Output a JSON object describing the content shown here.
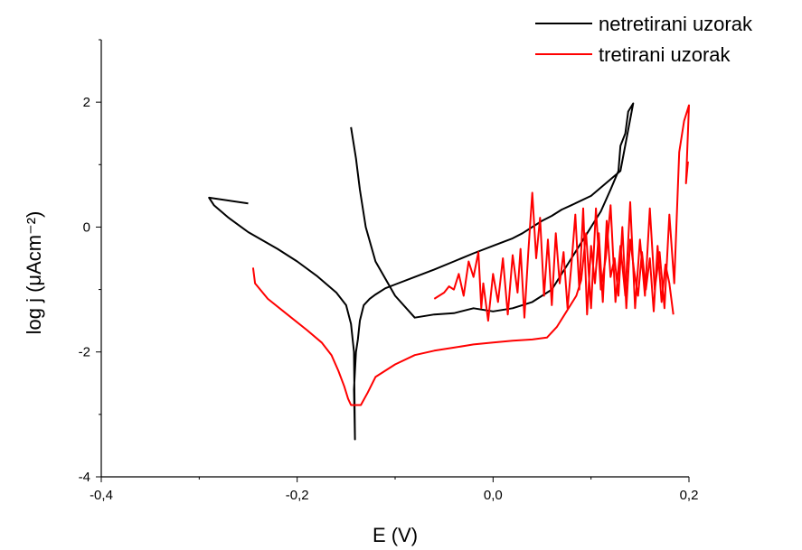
{
  "chart_data": {
    "type": "line",
    "xlabel": "E (V)",
    "ylabel": "log j (μAcm⁻²)",
    "xlim": [
      -0.4,
      0.2
    ],
    "ylim": [
      -4,
      3
    ],
    "x_ticks": [
      -0.4,
      -0.2,
      0.0,
      0.2
    ],
    "x_tick_labels": [
      "-0,4",
      "-0,2",
      "0,0",
      "0,2"
    ],
    "y_ticks": [
      -4,
      -2,
      0,
      2
    ],
    "y_tick_labels": [
      "-4",
      "-2",
      "0",
      "2"
    ],
    "grid": false,
    "legend_position": "top-right",
    "series": [
      {
        "name": "netretirani uzorak",
        "color": "#000000",
        "x": [
          -0.25,
          -0.29,
          -0.285,
          -0.27,
          -0.25,
          -0.22,
          -0.2,
          -0.18,
          -0.16,
          -0.15,
          -0.145,
          -0.142,
          -0.141,
          -0.142,
          -0.14,
          -0.138,
          -0.136,
          -0.132,
          -0.126,
          -0.12,
          -0.11,
          -0.1,
          -0.08,
          -0.06,
          -0.04,
          -0.02,
          0.0,
          0.02,
          0.03,
          0.04,
          0.05,
          0.06,
          0.07,
          0.08,
          0.1,
          0.13,
          0.143,
          0.138,
          0.135,
          0.13,
          0.128,
          0.12,
          0.11,
          0.1,
          0.08,
          0.06,
          0.04,
          0.02,
          0.0,
          -0.02,
          -0.04,
          -0.06,
          -0.08,
          -0.1,
          -0.12,
          -0.13,
          -0.136,
          -0.14,
          -0.145
        ],
        "y": [
          0.38,
          0.47,
          0.35,
          0.15,
          -0.08,
          -0.35,
          -0.55,
          -0.78,
          -1.05,
          -1.25,
          -1.55,
          -2.0,
          -3.4,
          -2.6,
          -2.0,
          -1.8,
          -1.5,
          -1.25,
          -1.15,
          -1.08,
          -0.98,
          -0.92,
          -0.8,
          -0.68,
          -0.55,
          -0.42,
          -0.3,
          -0.18,
          -0.1,
          0.0,
          0.1,
          0.18,
          0.28,
          0.35,
          0.5,
          0.9,
          1.98,
          1.85,
          1.5,
          1.3,
          0.9,
          0.6,
          0.25,
          0.0,
          -0.5,
          -1.0,
          -1.2,
          -1.3,
          -1.35,
          -1.3,
          -1.38,
          -1.4,
          -1.45,
          -1.1,
          -0.55,
          0.0,
          0.6,
          1.1,
          1.6
        ],
        "note_unused": ""
      },
      {
        "name": "tretirani uzorak",
        "color": "#ff0000",
        "x": [
          -0.245,
          -0.243,
          -0.23,
          -0.21,
          -0.19,
          -0.175,
          -0.165,
          -0.158,
          -0.152,
          -0.148,
          -0.145,
          -0.135,
          -0.128,
          -0.12,
          -0.1,
          -0.08,
          -0.06,
          -0.04,
          -0.02,
          0.0,
          0.02,
          0.04,
          0.055,
          0.065,
          0.075,
          0.085,
          0.09,
          0.095,
          0.1,
          0.105,
          0.11,
          0.115,
          0.12,
          0.125,
          0.13,
          0.135,
          0.14,
          0.145,
          0.15,
          0.155,
          0.16,
          0.165,
          0.17,
          0.175,
          0.18,
          0.185,
          0.19,
          0.195,
          0.2,
          0.197,
          0.199
        ],
        "y": [
          -0.65,
          -0.9,
          -1.15,
          -1.4,
          -1.65,
          -1.85,
          -2.05,
          -2.3,
          -2.55,
          -2.75,
          -2.85,
          -2.85,
          -2.65,
          -2.4,
          -2.2,
          -2.05,
          -1.98,
          -1.93,
          -1.88,
          -1.85,
          -1.82,
          -1.8,
          -1.77,
          -1.6,
          -1.35,
          -1.1,
          -0.85,
          -0.1,
          -1.3,
          0.3,
          -1.0,
          -0.5,
          0.35,
          -1.2,
          -0.3,
          -1.1,
          0.4,
          -1.3,
          -0.2,
          -1.1,
          0.3,
          -1.0,
          -0.4,
          -1.3,
          0.2,
          -0.9,
          1.2,
          1.7,
          1.95,
          0.7,
          1.05
        ]
      },
      {
        "name": "",
        "color": "#ff0000",
        "x": [
          -0.06,
          -0.05,
          -0.045,
          -0.04,
          -0.035,
          -0.03,
          -0.025,
          -0.02,
          -0.015,
          -0.012,
          -0.01,
          -0.005,
          0.0,
          0.005,
          0.01,
          0.015,
          0.02,
          0.025,
          0.028,
          0.032,
          0.036,
          0.04,
          0.044,
          0.048,
          0.052,
          0.056,
          0.06,
          0.064,
          0.068,
          0.072,
          0.076,
          0.08,
          0.084,
          0.088,
          0.092,
          0.096,
          0.1,
          0.104,
          0.108,
          0.112,
          0.116,
          0.12,
          0.124,
          0.128,
          0.132,
          0.136,
          0.14,
          0.144,
          0.148,
          0.152,
          0.156,
          0.16,
          0.164,
          0.168,
          0.172,
          0.176,
          0.18,
          0.184
        ],
        "y": [
          -1.15,
          -1.05,
          -0.95,
          -1.0,
          -0.75,
          -1.1,
          -0.55,
          -0.8,
          -0.4,
          -1.3,
          -0.9,
          -1.5,
          -0.75,
          -1.2,
          -0.5,
          -1.4,
          -0.45,
          -1.05,
          -0.35,
          -1.45,
          -0.4,
          0.55,
          -0.5,
          0.15,
          -1.1,
          -0.2,
          -1.25,
          -0.1,
          -0.9,
          -0.4,
          -1.3,
          -0.6,
          0.2,
          -1.0,
          0.3,
          -1.4,
          -0.3,
          -0.9,
          -0.1,
          -1.2,
          0.1,
          -0.8,
          -0.5,
          -1.1,
          0.0,
          -1.3,
          -0.2,
          -0.7,
          -1.1,
          -0.4,
          -1.0,
          -0.5,
          -1.35,
          -0.3,
          -1.2,
          -0.6,
          -0.9,
          -1.4
        ]
      }
    ]
  }
}
